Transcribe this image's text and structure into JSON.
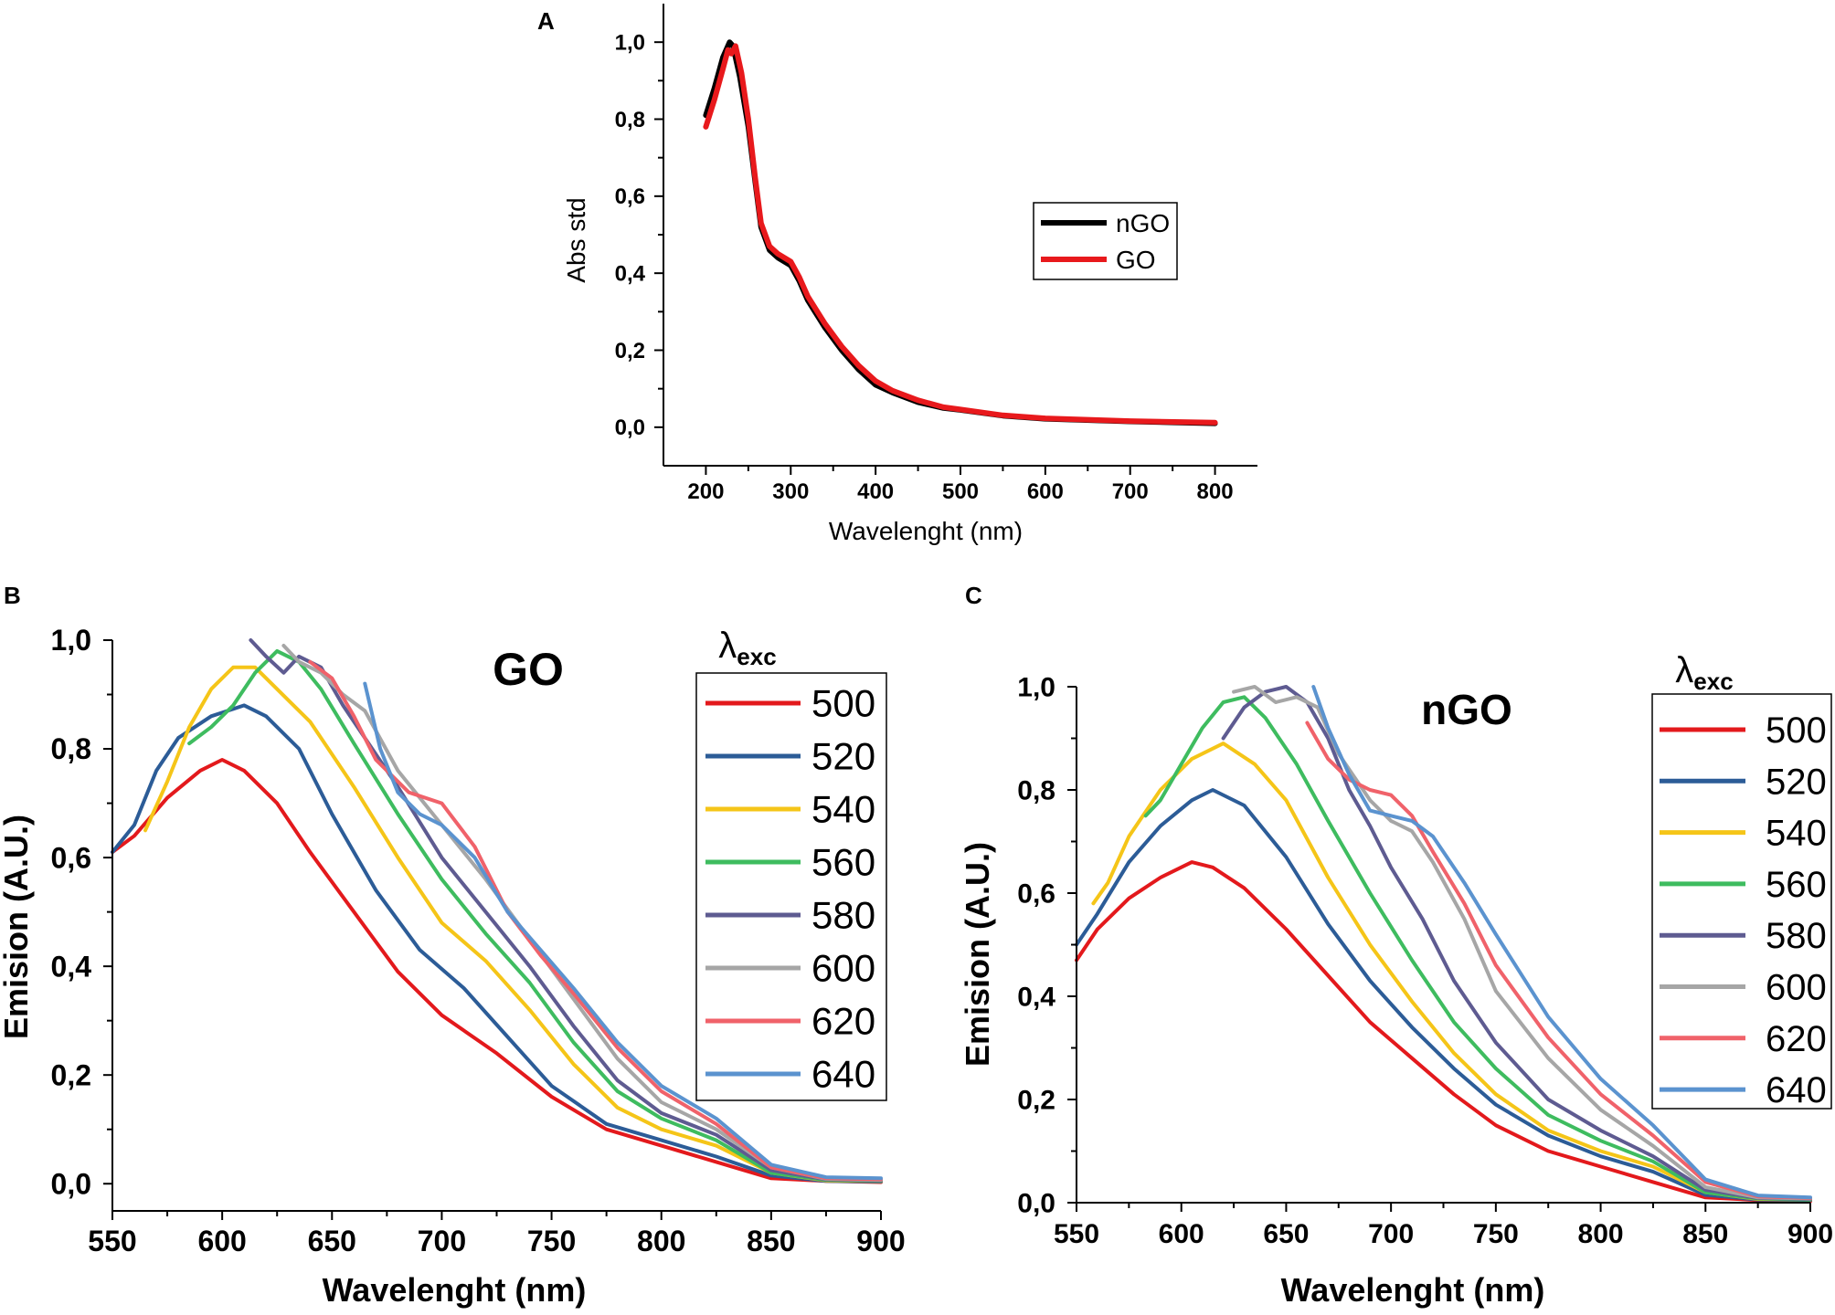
{
  "chart_data": [
    {
      "panel": "A",
      "type": "line",
      "title": "",
      "xlabel": "Wavelenght (nm)",
      "ylabel": "Abs std",
      "xlim": [
        150,
        850
      ],
      "ylim": [
        -0.1,
        1.1
      ],
      "xticks": [
        "200",
        "300",
        "400",
        "500",
        "600",
        "700",
        "800"
      ],
      "yticks": [
        "0,0",
        "0,2",
        "0,4",
        "0,6",
        "0,8",
        "1,0"
      ],
      "legend_position": "center-right",
      "series": [
        {
          "name": "nGO",
          "color": "#000000",
          "x": [
            200,
            210,
            220,
            228,
            232,
            240,
            250,
            258,
            265,
            275,
            285,
            300,
            310,
            320,
            340,
            360,
            380,
            400,
            420,
            450,
            480,
            500,
            550,
            600,
            700,
            800
          ],
          "y": [
            0.81,
            0.88,
            0.96,
            1.0,
            0.99,
            0.91,
            0.78,
            0.64,
            0.52,
            0.46,
            0.44,
            0.42,
            0.38,
            0.33,
            0.26,
            0.2,
            0.15,
            0.11,
            0.09,
            0.065,
            0.05,
            0.045,
            0.03,
            0.022,
            0.015,
            0.01
          ]
        },
        {
          "name": "GO",
          "color": "#e8191c",
          "x": [
            200,
            210,
            220,
            226,
            230,
            235,
            242,
            250,
            258,
            265,
            275,
            285,
            300,
            310,
            320,
            340,
            360,
            380,
            400,
            420,
            450,
            480,
            500,
            550,
            600,
            700,
            800
          ],
          "y": [
            0.78,
            0.85,
            0.93,
            0.98,
            0.97,
            0.99,
            0.92,
            0.8,
            0.65,
            0.53,
            0.47,
            0.45,
            0.43,
            0.39,
            0.34,
            0.27,
            0.21,
            0.16,
            0.12,
            0.095,
            0.07,
            0.052,
            0.046,
            0.031,
            0.023,
            0.016,
            0.012
          ]
        }
      ]
    },
    {
      "panel": "B",
      "type": "line",
      "title": "GO",
      "xlabel": "Wavelenght (nm)",
      "ylabel": "Emision (A.U.)",
      "xlim": [
        550,
        900
      ],
      "ylim": [
        -0.05,
        1.0
      ],
      "xticks": [
        "550",
        "600",
        "650",
        "700",
        "750",
        "800",
        "850",
        "900"
      ],
      "yticks": [
        "0,0",
        "0,2",
        "0,4",
        "0,6",
        "0,8",
        "1,0"
      ],
      "legend_title": "λ",
      "legend_subscript": "exc",
      "legend_position": "right",
      "series": [
        {
          "name": "500",
          "color": "#e3191c",
          "x": [
            550,
            560,
            575,
            590,
            600,
            610,
            625,
            640,
            660,
            680,
            700,
            725,
            750,
            775,
            800,
            825,
            850,
            875,
            900
          ],
          "y": [
            0.61,
            0.64,
            0.71,
            0.76,
            0.78,
            0.76,
            0.7,
            0.61,
            0.5,
            0.39,
            0.31,
            0.24,
            0.16,
            0.1,
            0.07,
            0.04,
            0.01,
            0.005,
            0.003
          ]
        },
        {
          "name": "520",
          "color": "#2c5c97",
          "x": [
            550,
            560,
            570,
            580,
            595,
            610,
            620,
            635,
            650,
            670,
            690,
            710,
            730,
            750,
            775,
            800,
            825,
            850,
            875,
            900
          ],
          "y": [
            0.61,
            0.66,
            0.76,
            0.82,
            0.86,
            0.88,
            0.86,
            0.8,
            0.68,
            0.54,
            0.43,
            0.36,
            0.27,
            0.18,
            0.11,
            0.08,
            0.05,
            0.015,
            0.005,
            0.004
          ]
        },
        {
          "name": "540",
          "color": "#f5c518",
          "x": [
            565,
            575,
            585,
            595,
            605,
            615,
            625,
            640,
            660,
            680,
            700,
            720,
            740,
            760,
            780,
            800,
            825,
            850,
            875,
            900
          ],
          "y": [
            0.65,
            0.74,
            0.84,
            0.91,
            0.95,
            0.95,
            0.91,
            0.85,
            0.73,
            0.6,
            0.48,
            0.41,
            0.32,
            0.22,
            0.14,
            0.1,
            0.07,
            0.02,
            0.006,
            0.005
          ]
        },
        {
          "name": "560",
          "color": "#3ebc5f",
          "x": [
            585,
            595,
            605,
            615,
            625,
            635,
            645,
            660,
            680,
            700,
            720,
            740,
            760,
            780,
            800,
            825,
            850,
            875,
            900
          ],
          "y": [
            0.81,
            0.84,
            0.88,
            0.94,
            0.98,
            0.96,
            0.91,
            0.81,
            0.68,
            0.56,
            0.46,
            0.37,
            0.26,
            0.17,
            0.12,
            0.08,
            0.02,
            0.007,
            0.005
          ]
        },
        {
          "name": "580",
          "color": "#5e5b91",
          "x": [
            613,
            620,
            628,
            635,
            645,
            655,
            665,
            680,
            700,
            720,
            740,
            760,
            780,
            800,
            825,
            850,
            875,
            900
          ],
          "y": [
            1.0,
            0.97,
            0.94,
            0.97,
            0.95,
            0.88,
            0.82,
            0.73,
            0.6,
            0.5,
            0.4,
            0.29,
            0.19,
            0.13,
            0.09,
            0.025,
            0.008,
            0.006
          ]
        },
        {
          "name": "600",
          "color": "#a6a6a6",
          "x": [
            628,
            635,
            645,
            655,
            665,
            680,
            700,
            720,
            740,
            760,
            780,
            800,
            825,
            850,
            875,
            900
          ],
          "y": [
            0.99,
            0.96,
            0.94,
            0.9,
            0.87,
            0.76,
            0.66,
            0.56,
            0.45,
            0.34,
            0.23,
            0.15,
            0.1,
            0.03,
            0.009,
            0.007
          ]
        },
        {
          "name": "620",
          "color": "#f0626a",
          "x": [
            640,
            650,
            660,
            670,
            685,
            700,
            715,
            730,
            745,
            760,
            780,
            800,
            825,
            850,
            875,
            900
          ],
          "y": [
            0.96,
            0.93,
            0.86,
            0.78,
            0.72,
            0.7,
            0.62,
            0.5,
            0.42,
            0.35,
            0.25,
            0.17,
            0.11,
            0.03,
            0.01,
            0.008
          ]
        },
        {
          "name": "640",
          "color": "#5b93cf",
          "x": [
            665,
            672,
            680,
            690,
            700,
            715,
            730,
            745,
            760,
            780,
            800,
            825,
            850,
            875,
            900
          ],
          "y": [
            0.92,
            0.8,
            0.72,
            0.68,
            0.66,
            0.6,
            0.5,
            0.43,
            0.36,
            0.26,
            0.18,
            0.12,
            0.035,
            0.012,
            0.01
          ]
        }
      ]
    },
    {
      "panel": "C",
      "type": "line",
      "title": "nGO",
      "xlabel": "Wavelenght (nm)",
      "ylabel": "Emision (A.U.)",
      "xlim": [
        550,
        900
      ],
      "ylim": [
        0.0,
        1.0
      ],
      "xticks": [
        "550",
        "600",
        "650",
        "700",
        "750",
        "800",
        "850",
        "900"
      ],
      "yticks": [
        "0,0",
        "0,2",
        "0,4",
        "0,6",
        "0,8",
        "1,0"
      ],
      "legend_title": "λ",
      "legend_subscript": "exc",
      "legend_position": "right",
      "series": [
        {
          "name": "500",
          "color": "#e3191c",
          "x": [
            550,
            560,
            575,
            590,
            605,
            615,
            630,
            650,
            670,
            690,
            710,
            730,
            750,
            775,
            800,
            825,
            850,
            875,
            900
          ],
          "y": [
            0.47,
            0.53,
            0.59,
            0.63,
            0.66,
            0.65,
            0.61,
            0.53,
            0.44,
            0.35,
            0.28,
            0.21,
            0.15,
            0.1,
            0.07,
            0.04,
            0.01,
            0.005,
            0.003
          ]
        },
        {
          "name": "520",
          "color": "#2c5c97",
          "x": [
            550,
            560,
            575,
            590,
            605,
            615,
            630,
            650,
            670,
            690,
            710,
            730,
            750,
            775,
            800,
            825,
            850,
            875,
            900
          ],
          "y": [
            0.5,
            0.56,
            0.66,
            0.73,
            0.78,
            0.8,
            0.77,
            0.67,
            0.54,
            0.43,
            0.34,
            0.26,
            0.19,
            0.13,
            0.09,
            0.06,
            0.015,
            0.006,
            0.005
          ]
        },
        {
          "name": "540",
          "color": "#f5c518",
          "x": [
            558,
            565,
            575,
            590,
            605,
            620,
            635,
            650,
            670,
            690,
            710,
            730,
            750,
            775,
            800,
            825,
            850,
            875,
            900
          ],
          "y": [
            0.58,
            0.62,
            0.71,
            0.8,
            0.86,
            0.89,
            0.85,
            0.78,
            0.63,
            0.5,
            0.39,
            0.29,
            0.21,
            0.14,
            0.1,
            0.07,
            0.02,
            0.007,
            0.006
          ]
        },
        {
          "name": "560",
          "color": "#3ebc5f",
          "x": [
            583,
            590,
            600,
            610,
            620,
            630,
            640,
            655,
            670,
            690,
            710,
            730,
            750,
            775,
            800,
            825,
            850,
            875,
            900
          ],
          "y": [
            0.75,
            0.78,
            0.85,
            0.92,
            0.97,
            0.98,
            0.94,
            0.85,
            0.74,
            0.6,
            0.47,
            0.35,
            0.26,
            0.17,
            0.12,
            0.08,
            0.02,
            0.008,
            0.006
          ]
        },
        {
          "name": "580",
          "color": "#5e5b91",
          "x": [
            620,
            630,
            640,
            650,
            660,
            670,
            680,
            690,
            700,
            715,
            730,
            750,
            775,
            800,
            825,
            850,
            875,
            900
          ],
          "y": [
            0.9,
            0.96,
            0.99,
            1.0,
            0.97,
            0.9,
            0.8,
            0.73,
            0.65,
            0.55,
            0.43,
            0.31,
            0.2,
            0.14,
            0.09,
            0.025,
            0.009,
            0.007
          ]
        },
        {
          "name": "600",
          "color": "#a6a6a6",
          "x": [
            625,
            635,
            645,
            655,
            665,
            675,
            690,
            700,
            710,
            720,
            735,
            750,
            775,
            800,
            825,
            850,
            875,
            900
          ],
          "y": [
            0.99,
            1.0,
            0.97,
            0.98,
            0.96,
            0.87,
            0.78,
            0.74,
            0.72,
            0.66,
            0.55,
            0.41,
            0.28,
            0.18,
            0.11,
            0.03,
            0.01,
            0.008
          ]
        },
        {
          "name": "620",
          "color": "#f0626a",
          "x": [
            660,
            670,
            680,
            690,
            700,
            710,
            720,
            735,
            750,
            775,
            800,
            825,
            850,
            875,
            900
          ],
          "y": [
            0.93,
            0.86,
            0.82,
            0.8,
            0.79,
            0.75,
            0.68,
            0.58,
            0.46,
            0.32,
            0.21,
            0.13,
            0.04,
            0.012,
            0.009
          ]
        },
        {
          "name": "640",
          "color": "#5b93cf",
          "x": [
            663,
            670,
            680,
            690,
            700,
            710,
            720,
            735,
            750,
            775,
            800,
            825,
            850,
            875,
            900
          ],
          "y": [
            1.0,
            0.92,
            0.83,
            0.76,
            0.75,
            0.74,
            0.71,
            0.62,
            0.52,
            0.36,
            0.24,
            0.15,
            0.045,
            0.014,
            0.01
          ]
        }
      ]
    }
  ]
}
